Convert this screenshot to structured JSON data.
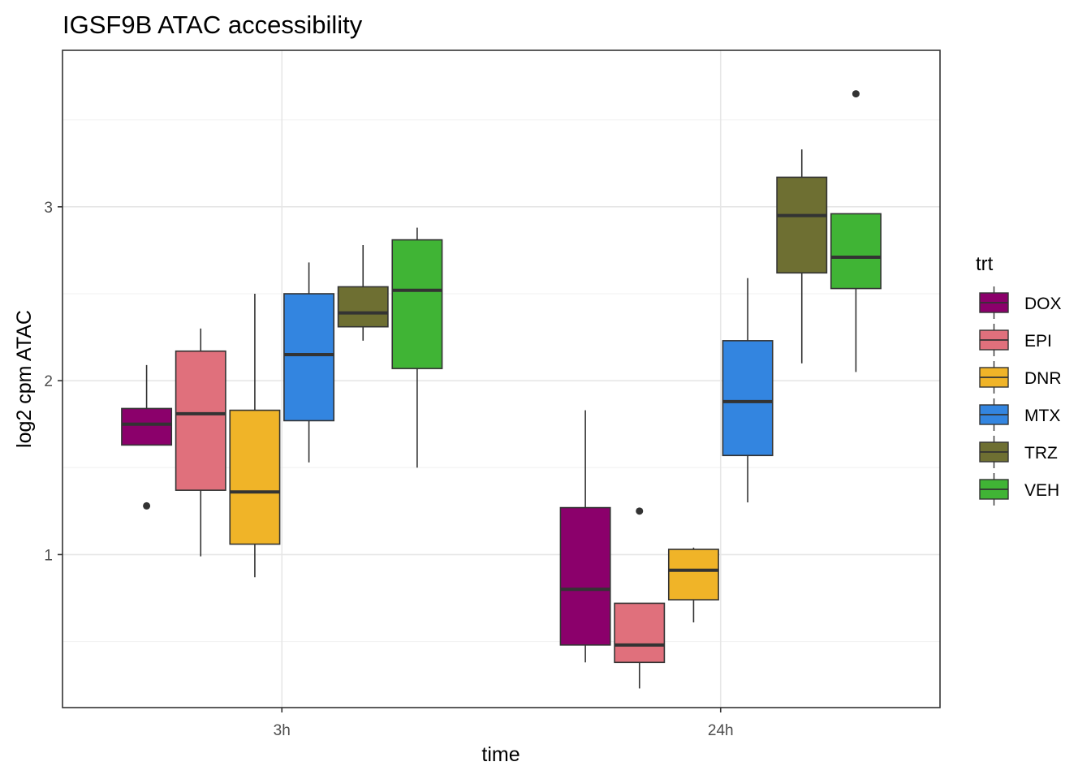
{
  "chart_data": {
    "type": "boxplot",
    "title": "IGSF9B ATAC accessibility",
    "xlabel": "time",
    "ylabel": "log2 cpm ATAC",
    "categories": [
      "3h",
      "24h"
    ],
    "yticks": [
      1,
      2,
      3
    ],
    "ytick_labels": [
      "1",
      "2",
      "3"
    ],
    "ylim": [
      0.12,
      3.9
    ],
    "grid": true,
    "legend": {
      "title": "trt",
      "position": "right"
    },
    "series": [
      {
        "name": "DOX",
        "color": "#8B006B",
        "boxes": [
          {
            "category": "3h",
            "whisker_low": 1.63,
            "q1": 1.63,
            "median": 1.75,
            "q3": 1.84,
            "whisker_high": 2.09,
            "outliers": [
              1.28
            ]
          },
          {
            "category": "24h",
            "whisker_low": 0.38,
            "q1": 0.48,
            "median": 0.8,
            "q3": 1.27,
            "whisker_high": 1.83,
            "outliers": []
          }
        ]
      },
      {
        "name": "EPI",
        "color": "#E0707C",
        "boxes": [
          {
            "category": "3h",
            "whisker_low": 0.99,
            "q1": 1.37,
            "median": 1.81,
            "q3": 2.17,
            "whisker_high": 2.3,
            "outliers": []
          },
          {
            "category": "24h",
            "whisker_low": 0.23,
            "q1": 0.38,
            "median": 0.48,
            "q3": 0.72,
            "whisker_high": 0.72,
            "outliers": [
              1.25
            ]
          }
        ]
      },
      {
        "name": "DNR",
        "color": "#F0B428",
        "boxes": [
          {
            "category": "3h",
            "whisker_low": 0.87,
            "q1": 1.06,
            "median": 1.36,
            "q3": 1.83,
            "whisker_high": 2.5,
            "outliers": []
          },
          {
            "category": "24h",
            "whisker_low": 0.61,
            "q1": 0.74,
            "median": 0.91,
            "q3": 1.03,
            "whisker_high": 1.04,
            "outliers": []
          }
        ]
      },
      {
        "name": "MTX",
        "color": "#3385E0",
        "boxes": [
          {
            "category": "3h",
            "whisker_low": 1.53,
            "q1": 1.77,
            "median": 2.15,
            "q3": 2.5,
            "whisker_high": 2.68,
            "outliers": []
          },
          {
            "category": "24h",
            "whisker_low": 1.3,
            "q1": 1.57,
            "median": 1.88,
            "q3": 2.23,
            "whisker_high": 2.59,
            "outliers": []
          }
        ]
      },
      {
        "name": "TRZ",
        "color": "#6E6F32",
        "boxes": [
          {
            "category": "3h",
            "whisker_low": 2.23,
            "q1": 2.31,
            "median": 2.39,
            "q3": 2.54,
            "whisker_high": 2.78,
            "outliers": []
          },
          {
            "category": "24h",
            "whisker_low": 2.1,
            "q1": 2.62,
            "median": 2.95,
            "q3": 3.17,
            "whisker_high": 3.33,
            "outliers": []
          }
        ]
      },
      {
        "name": "VEH",
        "color": "#40B435",
        "boxes": [
          {
            "category": "3h",
            "whisker_low": 1.5,
            "q1": 2.07,
            "median": 2.52,
            "q3": 2.81,
            "whisker_high": 2.88,
            "outliers": []
          },
          {
            "category": "24h",
            "whisker_low": 2.05,
            "q1": 2.53,
            "median": 2.71,
            "q3": 2.96,
            "whisker_high": 2.96,
            "outliers": [
              3.65
            ]
          }
        ]
      }
    ]
  }
}
